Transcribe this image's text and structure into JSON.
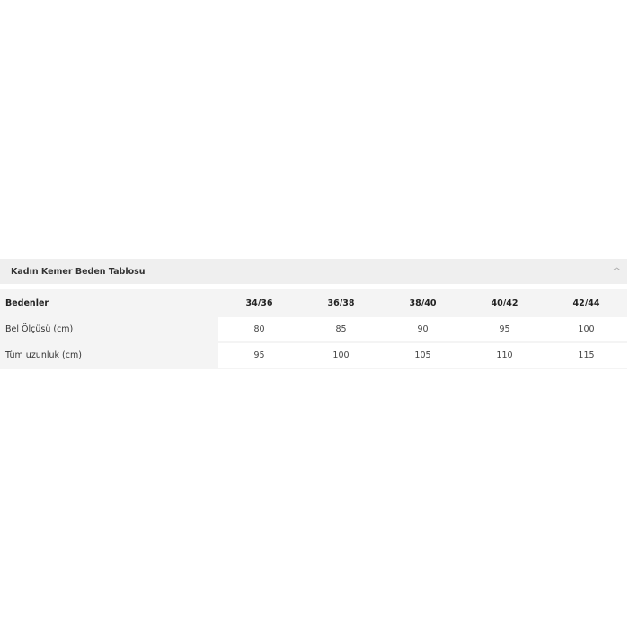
{
  "panel": {
    "title": "Kadın Kemer Beden Tablosu",
    "collapse_icon": "chevron-up-icon"
  },
  "table": {
    "headers": [
      "Bedenler",
      "34/36",
      "36/38",
      "38/40",
      "40/42",
      "42/44"
    ],
    "rows": [
      {
        "label": "Bel Ölçüsü (cm)",
        "values": [
          "80",
          "85",
          "90",
          "95",
          "100"
        ]
      },
      {
        "label": "Tüm uzunluk (cm)",
        "values": [
          "95",
          "100",
          "105",
          "110",
          "115"
        ]
      }
    ]
  }
}
